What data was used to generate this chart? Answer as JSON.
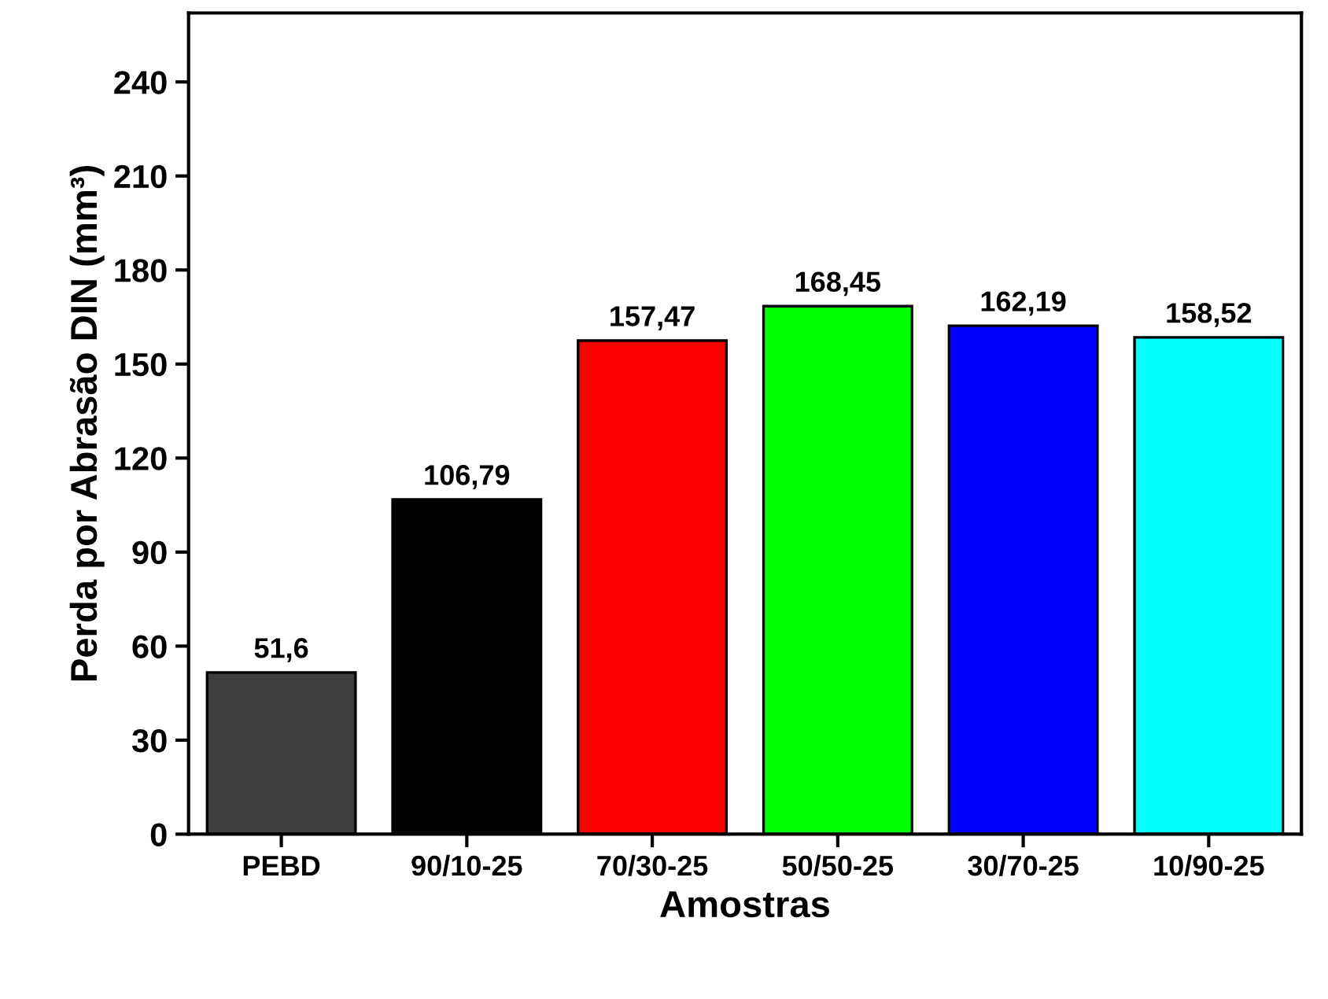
{
  "chart_data": {
    "type": "bar",
    "xlabel": "Amostras",
    "ylabel": "Perda por Abrasão DIN (mm³)",
    "categories": [
      "PEBD",
      "90/10-25",
      "70/30-25",
      "50/50-25",
      "30/70-25",
      "10/90-25"
    ],
    "values": [
      51.6,
      106.79,
      157.47,
      168.45,
      162.19,
      158.52
    ],
    "value_labels": [
      "51,6",
      "106,79",
      "157,47",
      "168,45",
      "162,19",
      "158,52"
    ],
    "colors": [
      "#3f3f3f",
      "#000000",
      "#ff0000",
      "#00ff00",
      "#0000ff",
      "#00ffff"
    ],
    "ylim": [
      0,
      262
    ],
    "yticks": [
      0,
      30,
      60,
      90,
      120,
      150,
      180,
      210,
      240
    ],
    "grid": false
  }
}
